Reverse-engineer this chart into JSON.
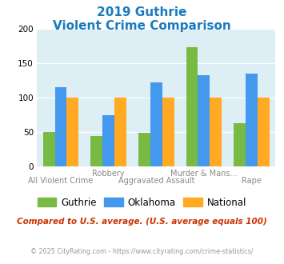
{
  "title_line1": "2019 Guthrie",
  "title_line2": "Violent Crime Comparison",
  "title_color": "#1a7abf",
  "top_labels": [
    "",
    "Robbery",
    "",
    "Murder & Mans...",
    ""
  ],
  "bottom_labels": [
    "All Violent Crime",
    "",
    "Aggravated Assault",
    "",
    "Rape"
  ],
  "guthrie": [
    50,
    44,
    49,
    174,
    63
  ],
  "oklahoma": [
    115,
    75,
    122,
    133,
    135
  ],
  "national": [
    100,
    100,
    100,
    100,
    100
  ],
  "guthrie_color": "#77bb44",
  "oklahoma_color": "#4499ee",
  "national_color": "#ffaa22",
  "ylim": [
    0,
    200
  ],
  "yticks": [
    0,
    50,
    100,
    150,
    200
  ],
  "bg_color": "#ddeef5",
  "footer_text": "Compared to U.S. average. (U.S. average equals 100)",
  "footer_color": "#cc3300",
  "copyright_text": "© 2025 CityRating.com - https://www.cityrating.com/crime-statistics/",
  "copyright_color": "#999999",
  "bar_width": 0.25,
  "legend_labels": [
    "Guthrie",
    "Oklahoma",
    "National"
  ]
}
